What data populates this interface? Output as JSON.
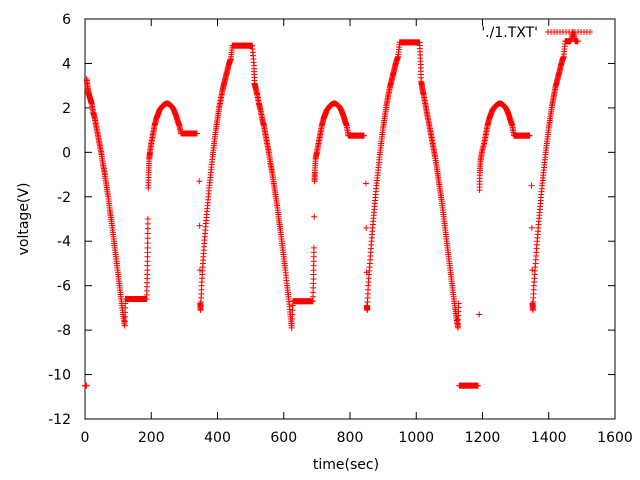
{
  "chart_data": {
    "type": "scatter",
    "xlabel": "time(sec)",
    "ylabel": "voltage(V)",
    "xlim": [
      0,
      1600
    ],
    "ylim": [
      -12,
      6
    ],
    "xticks": [
      0,
      200,
      400,
      600,
      800,
      1000,
      1200,
      1400,
      1600
    ],
    "yticks": [
      -12,
      -10,
      -8,
      -6,
      -4,
      -2,
      0,
      2,
      4,
      6
    ],
    "grid": false,
    "legend_position": "top-right",
    "marker": "plus",
    "color": "#ff0000",
    "series": [
      {
        "name": "'./1.TXT'",
        "points": [
          [
            0,
            -10.5
          ],
          [
            2,
            -10.5
          ],
          [
            4,
            -10.5
          ],
          [
            5,
            3.3
          ],
          [
            8,
            2.9
          ],
          [
            12,
            2.6
          ],
          [
            16,
            2.4
          ],
          [
            20,
            2.2
          ],
          [
            25,
            1.8
          ],
          [
            30,
            1.5
          ],
          [
            35,
            1.1
          ],
          [
            40,
            0.7
          ],
          [
            45,
            0.3
          ],
          [
            50,
            -0.1
          ],
          [
            55,
            -0.6
          ],
          [
            60,
            -1.0
          ],
          [
            65,
            -1.5
          ],
          [
            70,
            -2.0
          ],
          [
            75,
            -2.6
          ],
          [
            80,
            -3.1
          ],
          [
            85,
            -3.7
          ],
          [
            90,
            -4.3
          ],
          [
            95,
            -4.9
          ],
          [
            100,
            -5.5
          ],
          [
            105,
            -6.1
          ],
          [
            110,
            -6.7
          ],
          [
            115,
            -7.3
          ],
          [
            120,
            -7.8
          ],
          [
            122,
            -6.6
          ],
          [
            130,
            -6.6
          ],
          [
            140,
            -6.6
          ],
          [
            150,
            -6.6
          ],
          [
            160,
            -6.6
          ],
          [
            170,
            -6.6
          ],
          [
            180,
            -6.6
          ],
          [
            186,
            -6.6
          ],
          [
            188,
            -5.5
          ],
          [
            189,
            -4.3
          ],
          [
            190,
            -3.0
          ],
          [
            191,
            -1.6
          ],
          [
            192,
            -0.9
          ],
          [
            194,
            -0.3
          ],
          [
            196,
            0.0
          ],
          [
            200,
            0.4
          ],
          [
            205,
            0.8
          ],
          [
            210,
            1.2
          ],
          [
            215,
            1.5
          ],
          [
            220,
            1.7
          ],
          [
            225,
            1.9
          ],
          [
            230,
            2.0
          ],
          [
            235,
            2.1
          ],
          [
            240,
            2.15
          ],
          [
            245,
            2.2
          ],
          [
            250,
            2.2
          ],
          [
            255,
            2.15
          ],
          [
            260,
            2.1
          ],
          [
            265,
            2.0
          ],
          [
            270,
            1.85
          ],
          [
            275,
            1.65
          ],
          [
            280,
            1.4
          ],
          [
            285,
            1.2
          ],
          [
            290,
            0.85
          ],
          [
            300,
            0.85
          ],
          [
            310,
            0.85
          ],
          [
            320,
            0.85
          ],
          [
            330,
            0.85
          ],
          [
            338,
            0.85
          ],
          [
            345,
            -1.3
          ],
          [
            346,
            -3.3
          ],
          [
            347,
            -5.3
          ],
          [
            348,
            -6.8
          ],
          [
            349,
            -7.1
          ],
          [
            352,
            -6.0
          ],
          [
            356,
            -5.0
          ],
          [
            360,
            -4.1
          ],
          [
            365,
            -3.2
          ],
          [
            370,
            -2.4
          ],
          [
            375,
            -1.6
          ],
          [
            380,
            -0.9
          ],
          [
            385,
            -0.2
          ],
          [
            390,
            0.4
          ],
          [
            395,
            1.0
          ],
          [
            400,
            1.5
          ],
          [
            405,
            2.0
          ],
          [
            410,
            2.4
          ],
          [
            415,
            2.8
          ],
          [
            420,
            3.1
          ],
          [
            425,
            3.4
          ],
          [
            430,
            3.7
          ],
          [
            435,
            4.0
          ],
          [
            440,
            4.2
          ],
          [
            445,
            4.8
          ],
          [
            455,
            4.8
          ],
          [
            465,
            4.8
          ],
          [
            475,
            4.8
          ],
          [
            485,
            4.8
          ],
          [
            495,
            4.8
          ],
          [
            505,
            4.8
          ],
          [
            510,
            3.9
          ],
          [
            512,
            3.1
          ],
          [
            515,
            2.9
          ],
          [
            520,
            2.6
          ],
          [
            525,
            2.2
          ],
          [
            530,
            1.9
          ],
          [
            535,
            1.5
          ],
          [
            540,
            1.2
          ],
          [
            545,
            0.8
          ],
          [
            550,
            0.4
          ],
          [
            555,
            0.0
          ],
          [
            560,
            -0.5
          ],
          [
            565,
            -0.9
          ],
          [
            570,
            -1.4
          ],
          [
            575,
            -1.9
          ],
          [
            580,
            -2.4
          ],
          [
            585,
            -3.0
          ],
          [
            590,
            -3.5
          ],
          [
            595,
            -4.1
          ],
          [
            600,
            -4.7
          ],
          [
            605,
            -5.3
          ],
          [
            610,
            -6.0
          ],
          [
            615,
            -6.6
          ],
          [
            620,
            -7.3
          ],
          [
            624,
            -7.9
          ],
          [
            628,
            -6.7
          ],
          [
            638,
            -6.7
          ],
          [
            648,
            -6.7
          ],
          [
            658,
            -6.7
          ],
          [
            668,
            -6.7
          ],
          [
            678,
            -6.7
          ],
          [
            688,
            -6.7
          ],
          [
            690,
            -5.5
          ],
          [
            691,
            -4.3
          ],
          [
            692,
            -2.9
          ],
          [
            693,
            -1.3
          ],
          [
            694,
            -0.9
          ],
          [
            696,
            -0.3
          ],
          [
            700,
            0.0
          ],
          [
            705,
            0.4
          ],
          [
            710,
            0.8
          ],
          [
            715,
            1.2
          ],
          [
            720,
            1.5
          ],
          [
            725,
            1.7
          ],
          [
            730,
            1.9
          ],
          [
            735,
            2.0
          ],
          [
            740,
            2.1
          ],
          [
            745,
            2.15
          ],
          [
            750,
            2.2
          ],
          [
            755,
            2.2
          ],
          [
            760,
            2.15
          ],
          [
            765,
            2.1
          ],
          [
            770,
            2.0
          ],
          [
            775,
            1.85
          ],
          [
            780,
            1.65
          ],
          [
            785,
            1.4
          ],
          [
            790,
            1.2
          ],
          [
            795,
            0.75
          ],
          [
            805,
            0.75
          ],
          [
            815,
            0.75
          ],
          [
            825,
            0.75
          ],
          [
            835,
            0.75
          ],
          [
            842,
            0.75
          ],
          [
            848,
            -1.4
          ],
          [
            849,
            -3.4
          ],
          [
            850,
            -5.4
          ],
          [
            851,
            -6.9
          ],
          [
            852,
            -7.1
          ],
          [
            855,
            -6.0
          ],
          [
            860,
            -5.0
          ],
          [
            865,
            -4.0
          ],
          [
            870,
            -3.1
          ],
          [
            875,
            -2.3
          ],
          [
            880,
            -1.5
          ],
          [
            885,
            -0.8
          ],
          [
            890,
            -0.1
          ],
          [
            895,
            0.5
          ],
          [
            900,
            1.1
          ],
          [
            905,
            1.6
          ],
          [
            910,
            2.1
          ],
          [
            915,
            2.5
          ],
          [
            920,
            2.9
          ],
          [
            925,
            3.2
          ],
          [
            930,
            3.5
          ],
          [
            935,
            3.8
          ],
          [
            940,
            4.1
          ],
          [
            945,
            4.3
          ],
          [
            950,
            4.95
          ],
          [
            960,
            4.95
          ],
          [
            970,
            4.95
          ],
          [
            980,
            4.95
          ],
          [
            990,
            4.95
          ],
          [
            1000,
            4.95
          ],
          [
            1010,
            4.95
          ],
          [
            1013,
            4.1
          ],
          [
            1015,
            3.2
          ],
          [
            1018,
            2.9
          ],
          [
            1022,
            2.6
          ],
          [
            1027,
            2.2
          ],
          [
            1032,
            1.8
          ],
          [
            1037,
            1.4
          ],
          [
            1042,
            1.0
          ],
          [
            1047,
            0.6
          ],
          [
            1052,
            0.2
          ],
          [
            1057,
            -0.2
          ],
          [
            1062,
            -0.7
          ],
          [
            1067,
            -1.2
          ],
          [
            1072,
            -1.7
          ],
          [
            1077,
            -2.2
          ],
          [
            1082,
            -2.8
          ],
          [
            1087,
            -3.4
          ],
          [
            1092,
            -4.0
          ],
          [
            1097,
            -4.6
          ],
          [
            1102,
            -5.2
          ],
          [
            1107,
            -5.8
          ],
          [
            1112,
            -6.4
          ],
          [
            1117,
            -7.0
          ],
          [
            1122,
            -7.5
          ],
          [
            1126,
            -7.9
          ],
          [
            1128,
            -6.8
          ],
          [
            1130,
            -10.5
          ],
          [
            1140,
            -10.5
          ],
          [
            1150,
            -10.5
          ],
          [
            1160,
            -10.5
          ],
          [
            1170,
            -10.5
          ],
          [
            1180,
            -10.5
          ],
          [
            1186,
            -10.5
          ],
          [
            1190,
            -7.3
          ],
          [
            1191,
            -1.7
          ],
          [
            1192,
            -0.9
          ],
          [
            1194,
            -0.4
          ],
          [
            1198,
            0.0
          ],
          [
            1205,
            0.4
          ],
          [
            1210,
            0.8
          ],
          [
            1215,
            1.2
          ],
          [
            1220,
            1.5
          ],
          [
            1225,
            1.7
          ],
          [
            1230,
            1.9
          ],
          [
            1235,
            2.0
          ],
          [
            1240,
            2.1
          ],
          [
            1245,
            2.15
          ],
          [
            1250,
            2.2
          ],
          [
            1255,
            2.2
          ],
          [
            1260,
            2.15
          ],
          [
            1265,
            2.1
          ],
          [
            1270,
            2.0
          ],
          [
            1275,
            1.85
          ],
          [
            1280,
            1.65
          ],
          [
            1285,
            1.4
          ],
          [
            1290,
            1.2
          ],
          [
            1295,
            0.75
          ],
          [
            1305,
            0.75
          ],
          [
            1315,
            0.75
          ],
          [
            1325,
            0.75
          ],
          [
            1335,
            0.75
          ],
          [
            1342,
            0.75
          ],
          [
            1348,
            -1.5
          ],
          [
            1349,
            -3.4
          ],
          [
            1350,
            -5.3
          ],
          [
            1351,
            -6.8
          ],
          [
            1352,
            -7.1
          ],
          [
            1355,
            -6.0
          ],
          [
            1360,
            -5.0
          ],
          [
            1365,
            -4.0
          ],
          [
            1370,
            -3.1
          ],
          [
            1375,
            -2.3
          ],
          [
            1380,
            -1.5
          ],
          [
            1385,
            -0.8
          ],
          [
            1390,
            -0.1
          ],
          [
            1395,
            0.5
          ],
          [
            1400,
            1.1
          ],
          [
            1405,
            1.6
          ],
          [
            1410,
            2.1
          ],
          [
            1415,
            2.5
          ],
          [
            1420,
            2.9
          ],
          [
            1425,
            3.2
          ],
          [
            1430,
            3.5
          ],
          [
            1435,
            3.8
          ],
          [
            1440,
            4.1
          ],
          [
            1445,
            4.3
          ],
          [
            1450,
            5.0
          ],
          [
            1458,
            5.0
          ],
          [
            1466,
            5.0
          ],
          [
            1474,
            5.4
          ],
          [
            1480,
            5.0
          ],
          [
            1488,
            5.0
          ]
        ]
      }
    ]
  }
}
